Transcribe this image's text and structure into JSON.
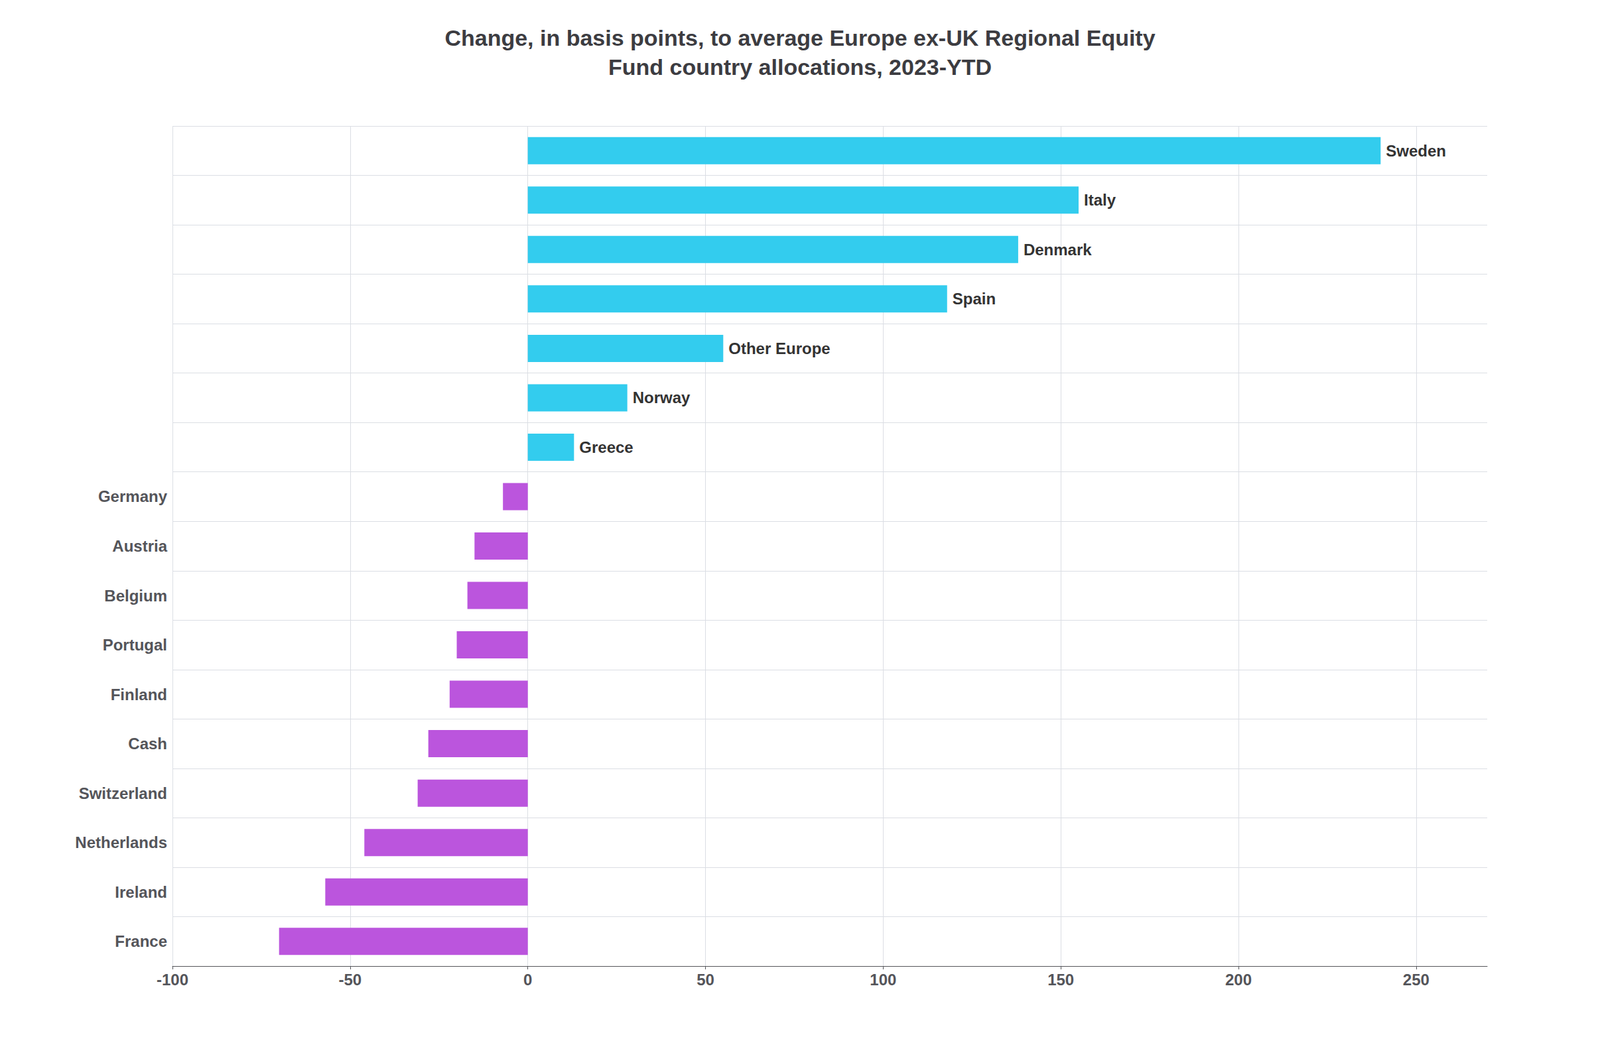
{
  "chart_data": {
    "type": "bar",
    "orientation": "horizontal",
    "title": "Change, in basis points, to average Europe ex-UK Regional Equity\nFund country allocations, 2023-YTD",
    "categories": [
      "France",
      "Ireland",
      "Netherlands",
      "Switzerland",
      "Cash",
      "Finland",
      "Portugal",
      "Belgium",
      "Austria",
      "Germany",
      "Greece",
      "Norway",
      "Other Europe",
      "Spain",
      "Denmark",
      "Italy",
      "Sweden"
    ],
    "values": [
      -70,
      -57,
      -46,
      -31,
      -28,
      -22,
      -20,
      -17,
      -15,
      -7,
      13,
      28,
      55,
      118,
      138,
      155,
      240
    ],
    "colors": [
      "#bb55dd",
      "#bb55dd",
      "#bb55dd",
      "#bb55dd",
      "#bb55dd",
      "#bb55dd",
      "#bb55dd",
      "#bb55dd",
      "#bb55dd",
      "#bb55dd",
      "#33ccee",
      "#33ccee",
      "#33ccee",
      "#33ccee",
      "#33ccee",
      "#33ccee",
      "#33ccee"
    ],
    "xlim": [
      -100,
      270
    ],
    "xticks": [
      -100,
      -50,
      0,
      50,
      100,
      150,
      200,
      250
    ],
    "grid": true
  }
}
